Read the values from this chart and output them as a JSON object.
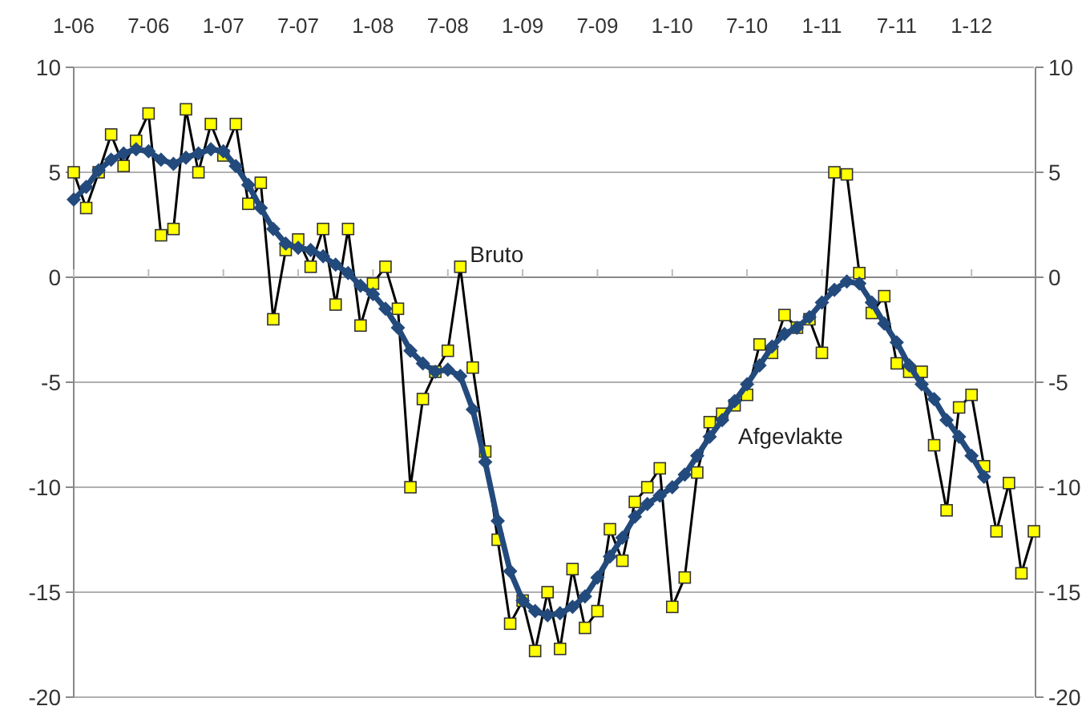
{
  "chart_data": {
    "type": "line",
    "categories": [
      "1-06",
      null,
      null,
      null,
      null,
      null,
      "7-06",
      null,
      null,
      null,
      null,
      null,
      "1-07",
      null,
      null,
      null,
      null,
      null,
      "7-07",
      null,
      null,
      null,
      null,
      null,
      "1-08",
      null,
      null,
      null,
      null,
      null,
      "7-08",
      null,
      null,
      null,
      null,
      null,
      "1-09",
      null,
      null,
      null,
      null,
      null,
      "7-09",
      null,
      null,
      null,
      null,
      null,
      "1-10",
      null,
      null,
      null,
      null,
      null,
      "7-10",
      null,
      null,
      null,
      null,
      null,
      "1-11",
      null,
      null,
      null,
      null,
      null,
      "7-11",
      null,
      null,
      null,
      null,
      null,
      "1-12",
      null,
      null,
      null,
      null,
      null
    ],
    "series": [
      {
        "name": "Bruto",
        "color": "#000000",
        "marker": "square",
        "values": [
          5.0,
          3.3,
          5.0,
          6.8,
          5.3,
          6.5,
          7.8,
          2.0,
          2.3,
          8.0,
          5.0,
          7.3,
          5.8,
          7.3,
          3.5,
          4.5,
          -2.0,
          1.3,
          1.8,
          0.5,
          2.3,
          -1.3,
          2.3,
          -2.3,
          -0.3,
          0.5,
          -1.5,
          -10.0,
          -5.8,
          -4.5,
          -3.5,
          0.5,
          -4.3,
          -8.3,
          -12.5,
          -16.5,
          -15.4,
          -17.8,
          -15.0,
          -17.7,
          -13.9,
          -16.7,
          -15.9,
          -12.0,
          -13.5,
          -10.7,
          -10.0,
          -9.1,
          -15.7,
          -14.3,
          -9.3,
          -6.9,
          -6.5,
          -6.1,
          -5.6,
          -3.2,
          -3.6,
          -1.8,
          -2.4,
          -2.0,
          -3.6,
          5.0,
          4.9,
          0.2,
          -1.7,
          -0.9,
          -4.1,
          -4.5,
          -4.5,
          -8.0,
          -11.1,
          -6.2,
          -5.6,
          -9.0,
          -12.1,
          -9.8,
          -14.1,
          -12.1
        ]
      },
      {
        "name": "Afgevlakte",
        "color": "#234a7c",
        "marker": "diamond",
        "values": [
          3.7,
          4.3,
          5.1,
          5.6,
          5.9,
          6.1,
          6.0,
          5.6,
          5.4,
          5.7,
          5.9,
          6.1,
          6.0,
          5.3,
          4.4,
          3.3,
          2.3,
          1.6,
          1.4,
          1.3,
          1.0,
          0.6,
          0.2,
          -0.4,
          -0.8,
          -1.5,
          -2.4,
          -3.5,
          -4.1,
          -4.5,
          -4.4,
          -4.7,
          -6.3,
          -8.8,
          -11.6,
          -14.0,
          -15.4,
          -15.9,
          -16.1,
          -16.0,
          -15.7,
          -15.2,
          -14.3,
          -13.3,
          -12.4,
          -11.4,
          -10.8,
          -10.4,
          -10.0,
          -9.4,
          -8.5,
          -7.6,
          -6.8,
          -5.9,
          -5.1,
          -4.2,
          -3.3,
          -2.7,
          -2.4,
          -1.9,
          -1.2,
          -0.6,
          -0.2,
          -0.3,
          -1.2,
          -2.2,
          -3.1,
          -4.2,
          -5.1,
          -5.8,
          -6.8,
          -7.6,
          -8.5,
          -9.5,
          null,
          null,
          null,
          null
        ]
      }
    ],
    "ylim": [
      -20,
      10
    ],
    "yticks": [
      -20,
      -15,
      -10,
      -5,
      0,
      5,
      10
    ],
    "y2lim": [
      -20,
      10
    ],
    "y2ticks": [
      -20,
      -15,
      -10,
      -5,
      0,
      5,
      10
    ],
    "grid": "y",
    "legend": false
  }
}
